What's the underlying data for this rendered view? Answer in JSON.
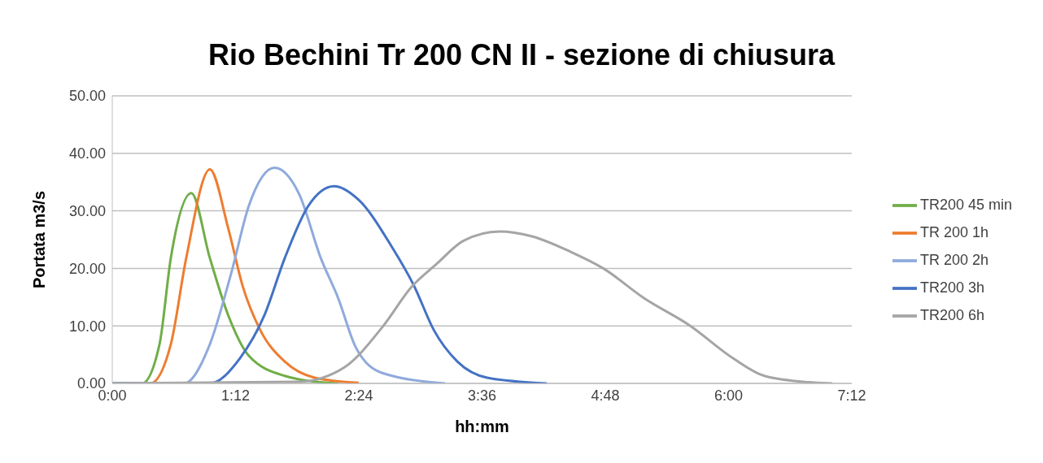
{
  "chart_data": {
    "type": "line",
    "title": "Rio Bechini Tr 200 CN II - sezione di chiusura",
    "xlabel": "hh:mm",
    "ylabel": "Portata m3/s",
    "xlim": [
      0,
      7.2
    ],
    "xticks": [
      {
        "value": 0,
        "label": "0:00"
      },
      {
        "value": 1.2,
        "label": "1:12"
      },
      {
        "value": 2.4,
        "label": "2:24"
      },
      {
        "value": 3.6,
        "label": "3:36"
      },
      {
        "value": 4.8,
        "label": "4:48"
      },
      {
        "value": 6,
        "label": "6:00"
      },
      {
        "value": 7.2,
        "label": "7:12"
      }
    ],
    "ylim": [
      0,
      50
    ],
    "yticks": [
      {
        "value": 0,
        "label": "0.00"
      },
      {
        "value": 10,
        "label": "10.00"
      },
      {
        "value": 20,
        "label": "20.00"
      },
      {
        "value": 30,
        "label": "30.00"
      },
      {
        "value": 40,
        "label": "40.00"
      },
      {
        "value": 50,
        "label": "50.00"
      }
    ],
    "grid": "y",
    "legend": "right",
    "marker": "none",
    "line_style": "solid",
    "series": [
      {
        "name": "TR200 45 min",
        "color": "#70ad47",
        "x": [
          0,
          0.29,
          0.46,
          0.57,
          0.77,
          0.95,
          1.13,
          1.33,
          1.68,
          2.11,
          2.2
        ],
        "values": [
          0,
          0,
          6.8,
          21.8,
          33.1,
          21.8,
          11.8,
          4.8,
          1.3,
          0.1,
          0
        ]
      },
      {
        "name": "TR 200 1h",
        "color": "#ed7d31",
        "x": [
          0,
          0.37,
          0.57,
          0.72,
          0.95,
          1.13,
          1.27,
          1.44,
          1.68,
          1.97,
          2.4
        ],
        "values": [
          0,
          0,
          6.8,
          21.8,
          37.2,
          26.9,
          16.9,
          9.3,
          3.8,
          1,
          0.1
        ]
      },
      {
        "name": "TR 200 2h",
        "color": "#8faadc",
        "x": [
          0,
          0.7,
          0.95,
          1.16,
          1.33,
          1.58,
          1.82,
          2.03,
          2.2,
          2.37,
          2.63,
          3.24
        ],
        "values": [
          0,
          0,
          6.8,
          19.3,
          30.9,
          37.5,
          32.9,
          21.8,
          14.8,
          6.3,
          1.8,
          0
        ]
      },
      {
        "name": "TR200 3h",
        "color": "#4472c4",
        "x": [
          0,
          0.95,
          1.24,
          1.48,
          1.68,
          1.91,
          2.16,
          2.4,
          2.72,
          2.94,
          3.13,
          3.36,
          3.65,
          4.23
        ],
        "values": [
          0,
          0,
          4.3,
          11.8,
          21.8,
          30.9,
          34.3,
          31.9,
          23.8,
          16.9,
          9.3,
          3.8,
          1,
          0
        ]
      },
      {
        "name": "TR200 6h",
        "color": "#a5a5a5",
        "x": [
          0,
          1.82,
          2.26,
          2.63,
          2.92,
          3.16,
          3.42,
          3.77,
          4.08,
          4.46,
          4.78,
          5.18,
          5.62,
          6.05,
          6.35,
          6.78,
          7.01
        ],
        "values": [
          0,
          0.3,
          2.8,
          9.8,
          16.9,
          20.8,
          24.8,
          26.4,
          25.6,
          22.9,
          20,
          14.8,
          10.1,
          4.3,
          1.3,
          0.2,
          0
        ]
      }
    ]
  }
}
